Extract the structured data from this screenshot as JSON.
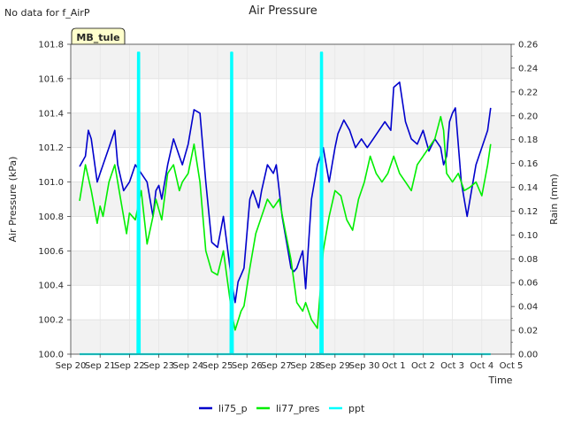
{
  "chart_data": {
    "type": "line",
    "title": "Air Pressure",
    "corner_note": "No data for f_AirP",
    "station_badge": "MB_tule",
    "xlabel": "Time",
    "ylabel": "Air Pressure (kPa)",
    "y2label": "Rain (mm)",
    "x_tick_labels": [
      "Sep 20",
      "Sep 21",
      "Sep 22",
      "Sep 23",
      "Sep 24",
      "Sep 25",
      "Sep 26",
      "Sep 27",
      "Sep 28",
      "Sep 29",
      "Sep 30",
      "Oct 1",
      "Oct 2",
      "Oct 3",
      "Oct 4",
      "Oct 5"
    ],
    "xlim_days": [
      0,
      15
    ],
    "ylim": [
      100.0,
      101.8
    ],
    "y_ticks": [
      "100.0",
      "100.2",
      "100.4",
      "100.6",
      "100.8",
      "101.0",
      "101.2",
      "101.4",
      "101.6",
      "101.8"
    ],
    "y2lim": [
      0.0,
      0.26
    ],
    "y2_ticks": [
      "0.00",
      "0.02",
      "0.04",
      "0.06",
      "0.08",
      "0.10",
      "0.12",
      "0.14",
      "0.16",
      "0.18",
      "0.20",
      "0.22",
      "0.24",
      "0.26"
    ],
    "legend_position": "bottom-center",
    "series": [
      {
        "name": "li75_p",
        "color": "#0000cc",
        "x": [
          0.3,
          0.5,
          0.6,
          0.7,
          0.9,
          1.0,
          1.1,
          1.3,
          1.5,
          1.6,
          1.8,
          2.0,
          2.2,
          2.4,
          2.6,
          2.8,
          2.9,
          3.0,
          3.1,
          3.3,
          3.5,
          3.7,
          3.8,
          4.0,
          4.2,
          4.4,
          4.6,
          4.8,
          5.0,
          5.2,
          5.5,
          5.6,
          5.7,
          5.8,
          5.9,
          6.1,
          6.2,
          6.3,
          6.4,
          6.5,
          6.7,
          6.9,
          7.0,
          7.2,
          7.4,
          7.5,
          7.6,
          7.7,
          7.9,
          8.0,
          8.2,
          8.4,
          8.6,
          8.8,
          8.9,
          9.0,
          9.1,
          9.3,
          9.5,
          9.7,
          9.9,
          10.1,
          10.3,
          10.5,
          10.7,
          10.9,
          11.0,
          11.2,
          11.4,
          11.6,
          11.8,
          12.0,
          12.2,
          12.4,
          12.6,
          12.7,
          12.8,
          12.9,
          13.0,
          13.1,
          13.3,
          13.5,
          13.6,
          13.8,
          14.0,
          14.2,
          14.3
        ],
        "values": [
          101.09,
          101.15,
          101.3,
          101.25,
          101.0,
          101.05,
          101.1,
          101.2,
          101.3,
          101.1,
          100.95,
          101.0,
          101.1,
          101.05,
          101.0,
          100.8,
          100.95,
          100.98,
          100.9,
          101.1,
          101.25,
          101.15,
          101.1,
          101.22,
          101.42,
          101.4,
          101.0,
          100.65,
          100.62,
          100.8,
          100.4,
          100.3,
          100.42,
          100.46,
          100.5,
          100.9,
          100.95,
          100.9,
          100.85,
          100.95,
          101.1,
          101.05,
          101.1,
          100.8,
          100.6,
          100.5,
          100.48,
          100.5,
          100.6,
          100.38,
          100.9,
          101.1,
          101.2,
          101.0,
          101.1,
          101.2,
          101.28,
          101.36,
          101.3,
          101.2,
          101.25,
          101.2,
          101.25,
          101.3,
          101.35,
          101.3,
          101.55,
          101.58,
          101.35,
          101.25,
          101.22,
          101.3,
          101.18,
          101.25,
          101.2,
          101.1,
          101.15,
          101.35,
          101.4,
          101.43,
          101.0,
          100.8,
          100.9,
          101.1,
          101.2,
          101.3,
          101.43
        ]
      },
      {
        "name": "li77_pres",
        "color": "#00ee00",
        "x": [
          0.3,
          0.5,
          0.7,
          0.9,
          1.0,
          1.1,
          1.3,
          1.5,
          1.7,
          1.9,
          2.0,
          2.2,
          2.4,
          2.6,
          2.8,
          2.9,
          3.1,
          3.3,
          3.5,
          3.7,
          3.8,
          4.0,
          4.2,
          4.4,
          4.6,
          4.8,
          5.0,
          5.2,
          5.5,
          5.6,
          5.8,
          5.9,
          6.1,
          6.3,
          6.5,
          6.7,
          6.9,
          7.1,
          7.3,
          7.5,
          7.7,
          7.9,
          8.0,
          8.2,
          8.4,
          8.6,
          8.8,
          9.0,
          9.2,
          9.4,
          9.6,
          9.8,
          10.0,
          10.2,
          10.4,
          10.6,
          10.8,
          11.0,
          11.2,
          11.4,
          11.6,
          11.8,
          12.0,
          12.2,
          12.4,
          12.6,
          12.7,
          12.8,
          13.0,
          13.2,
          13.4,
          13.6,
          13.8,
          14.0,
          14.2,
          14.3
        ],
        "values": [
          100.89,
          101.1,
          100.95,
          100.76,
          100.86,
          100.8,
          101.0,
          101.1,
          100.9,
          100.7,
          100.82,
          100.78,
          100.95,
          100.64,
          100.8,
          100.9,
          100.78,
          101.05,
          101.1,
          100.95,
          101.0,
          101.05,
          101.22,
          101.0,
          100.6,
          100.48,
          100.46,
          100.6,
          100.22,
          100.14,
          100.25,
          100.28,
          100.5,
          100.7,
          100.8,
          100.9,
          100.85,
          100.9,
          100.72,
          100.55,
          100.3,
          100.25,
          100.3,
          100.2,
          100.15,
          100.6,
          100.8,
          100.95,
          100.92,
          100.78,
          100.72,
          100.9,
          101.0,
          101.15,
          101.05,
          101.0,
          101.05,
          101.15,
          101.05,
          101.0,
          100.95,
          101.1,
          101.15,
          101.2,
          101.25,
          101.38,
          101.3,
          101.05,
          101.0,
          101.05,
          100.95,
          100.97,
          101.0,
          100.92,
          101.1,
          101.22
        ]
      },
      {
        "name": "ppt",
        "color": "#00ffff",
        "axis": "right",
        "x": [
          0.3,
          2.27,
          2.29,
          2.31,
          2.33,
          2.35,
          5.44,
          5.46,
          5.48,
          5.5,
          5.52,
          8.5,
          8.52,
          8.54,
          8.56,
          8.58,
          14.3
        ],
        "values": [
          0.0,
          0.0,
          0.253,
          0.0,
          0.253,
          0.0,
          0.0,
          0.253,
          0.0,
          0.253,
          0.0,
          0.0,
          0.253,
          0.0,
          0.253,
          0.0,
          0.0
        ]
      }
    ]
  }
}
